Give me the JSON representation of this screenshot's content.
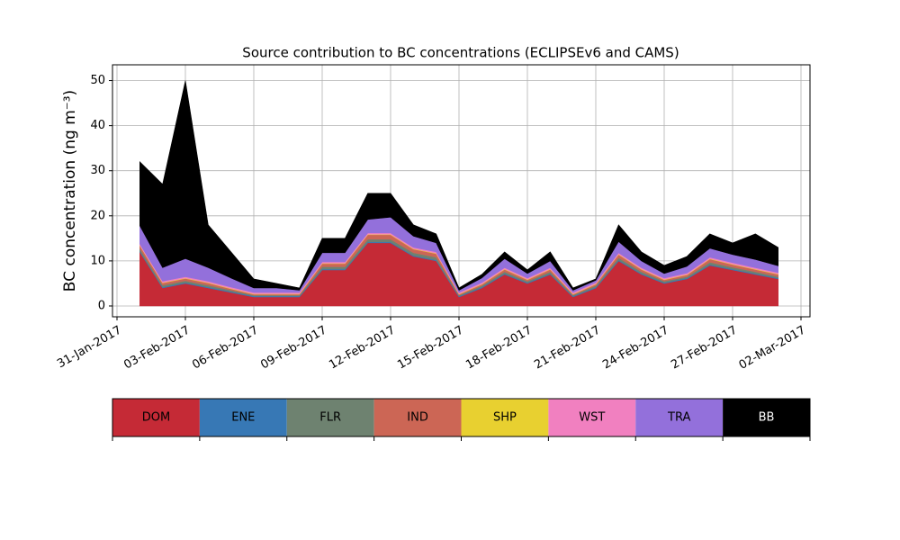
{
  "chart_data": {
    "type": "stacked_area",
    "title": "Source contribution to BC concentrations (ECLIPSEv6 and CAMS)",
    "y_label": "BC concentration (ng m⁻³)",
    "x": [
      "2017-02-01",
      "2017-02-02",
      "2017-02-03",
      "2017-02-04",
      "2017-02-05",
      "2017-02-06",
      "2017-02-07",
      "2017-02-08",
      "2017-02-09",
      "2017-02-10",
      "2017-02-11",
      "2017-02-12",
      "2017-02-13",
      "2017-02-14",
      "2017-02-15",
      "2017-02-16",
      "2017-02-17",
      "2017-02-18",
      "2017-02-19",
      "2017-02-20",
      "2017-02-21",
      "2017-02-22",
      "2017-02-23",
      "2017-02-24",
      "2017-02-25",
      "2017-02-26",
      "2017-02-27",
      "2017-02-28",
      "2017-03-01"
    ],
    "series": [
      {
        "name": "DOM",
        "color": "#c52a36",
        "values": [
          12,
          4,
          5,
          4,
          3,
          2,
          2,
          2,
          8,
          8,
          14,
          14,
          11,
          10,
          2,
          4,
          7,
          5,
          7,
          2,
          4,
          10,
          7,
          5,
          6,
          9,
          8,
          7,
          6
        ]
      },
      {
        "name": "ENE",
        "color": "#3778b5",
        "values": [
          0.2,
          0.2,
          0.2,
          0.2,
          0.2,
          0.2,
          0.2,
          0.2,
          0.2,
          0.2,
          0.2,
          0.2,
          0.2,
          0.2,
          0.2,
          0.2,
          0.2,
          0.2,
          0.2,
          0.2,
          0.2,
          0.2,
          0.2,
          0.2,
          0.2,
          0.2,
          0.2,
          0.2,
          0.2
        ]
      },
      {
        "name": "FLR",
        "color": "#6e8270",
        "values": [
          0.5,
          0.4,
          0.4,
          0.4,
          0.3,
          0.2,
          0.2,
          0.2,
          0.5,
          0.5,
          0.6,
          0.6,
          0.6,
          0.6,
          0.2,
          0.3,
          0.4,
          0.3,
          0.4,
          0.2,
          0.3,
          0.5,
          0.4,
          0.3,
          0.3,
          0.5,
          0.4,
          0.4,
          0.3
        ]
      },
      {
        "name": "IND",
        "color": "#cc6655",
        "values": [
          0.7,
          0.5,
          0.5,
          0.5,
          0.3,
          0.2,
          0.2,
          0.2,
          0.7,
          0.7,
          1,
          1,
          0.8,
          0.8,
          0.2,
          0.3,
          0.5,
          0.3,
          0.5,
          0.2,
          0.3,
          0.7,
          0.5,
          0.3,
          0.4,
          0.7,
          0.6,
          0.5,
          0.5
        ]
      },
      {
        "name": "SHP",
        "color": "#e8d030",
        "values": [
          0.1,
          0.1,
          0.1,
          0.1,
          0.1,
          0.1,
          0.1,
          0.1,
          0.1,
          0.1,
          0.1,
          0.1,
          0.1,
          0.1,
          0.1,
          0.1,
          0.1,
          0.1,
          0.1,
          0.1,
          0.1,
          0.1,
          0.1,
          0.1,
          0.1,
          0.1,
          0.1,
          0.1,
          0.1
        ]
      },
      {
        "name": "WST",
        "color": "#f180c0",
        "values": [
          0.3,
          0.3,
          0.3,
          0.3,
          0.3,
          0.3,
          0.3,
          0.3,
          0.3,
          0.3,
          0.3,
          0.3,
          0.3,
          0.3,
          0.3,
          0.3,
          0.3,
          0.3,
          0.3,
          0.3,
          0.3,
          0.3,
          0.3,
          0.3,
          0.3,
          0.3,
          0.3,
          0.3,
          0.3
        ]
      },
      {
        "name": "TRA",
        "color": "#9370db",
        "values": [
          4,
          3,
          4,
          3,
          2,
          1,
          1,
          0.5,
          2,
          2,
          3,
          3.5,
          2.5,
          2,
          0.5,
          1,
          2,
          1,
          1.5,
          0.5,
          0.5,
          2.5,
          1.5,
          1,
          1.5,
          2,
          1.8,
          1.8,
          1.5
        ]
      },
      {
        "name": "BB",
        "color": "#000000",
        "values": [
          14.2,
          18.5,
          39.5,
          9.5,
          5.8,
          2,
          1,
          0.5,
          3.2,
          3.2,
          5.8,
          5.3,
          2.5,
          2,
          0.5,
          0.8,
          1.5,
          0.8,
          2,
          0.5,
          0.3,
          3.7,
          2,
          1.8,
          2.2,
          3.2,
          2.6,
          5.7,
          4.1
        ]
      }
    ],
    "xlim": [
      "2017-01-31",
      "2017-03-02"
    ],
    "xticks": [
      {
        "value": "2017-01-31",
        "label": "31-Jan-2017"
      },
      {
        "value": "2017-02-03",
        "label": "03-Feb-2017"
      },
      {
        "value": "2017-02-06",
        "label": "06-Feb-2017"
      },
      {
        "value": "2017-02-09",
        "label": "09-Feb-2017"
      },
      {
        "value": "2017-02-12",
        "label": "12-Feb-2017"
      },
      {
        "value": "2017-02-15",
        "label": "15-Feb-2017"
      },
      {
        "value": "2017-02-18",
        "label": "18-Feb-2017"
      },
      {
        "value": "2017-02-21",
        "label": "21-Feb-2017"
      },
      {
        "value": "2017-02-24",
        "label": "24-Feb-2017"
      },
      {
        "value": "2017-02-27",
        "label": "27-Feb-2017"
      },
      {
        "value": "2017-03-02",
        "label": "02-Mar-2017"
      }
    ],
    "ylim": [
      -2.4,
      53.5
    ],
    "yticks": [
      0,
      10,
      20,
      30,
      40,
      50
    ],
    "grid": true
  }
}
